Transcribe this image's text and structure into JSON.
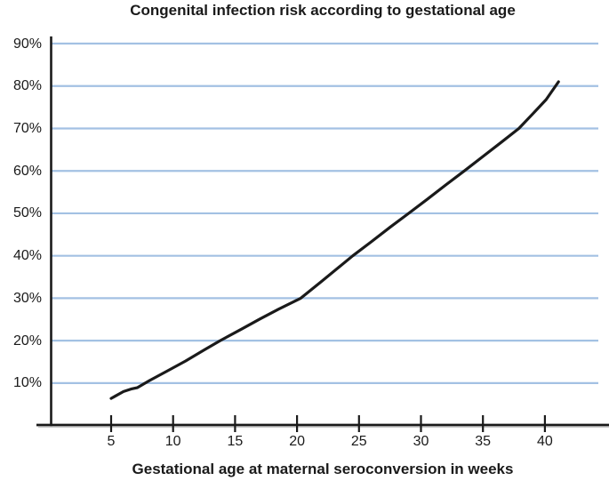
{
  "page": {
    "background": "#ffffff"
  },
  "chart_data": {
    "type": "line",
    "title": "Congenital infection risk according to gestational age",
    "xlabel": "Gestational age at maternal seroconversion in weeks",
    "ylabel": "",
    "xlim": [
      -1,
      45.2
    ],
    "ylim": [
      0,
      91.7
    ],
    "grid": true,
    "legend_position": "none",
    "colors": {
      "grid": "#a3c1e3",
      "axis": "#1a1a1a",
      "axis_shadow": "#c9c9c9",
      "line": "#1a1a1a",
      "text": "#1a1a1a"
    },
    "x_ticks": [
      {
        "value": 5,
        "label": "5"
      },
      {
        "value": 10,
        "label": "10"
      },
      {
        "value": 15,
        "label": "15"
      },
      {
        "value": 20,
        "label": "20"
      },
      {
        "value": 25,
        "label": "25"
      },
      {
        "value": 30,
        "label": "30"
      },
      {
        "value": 35,
        "label": "35"
      },
      {
        "value": 40,
        "label": "40"
      }
    ],
    "y_ticks": [
      {
        "value": 10,
        "label": "10%"
      },
      {
        "value": 20,
        "label": "20%"
      },
      {
        "value": 30,
        "label": "30%"
      },
      {
        "value": 40,
        "label": "40%"
      },
      {
        "value": 50,
        "label": "50%"
      },
      {
        "value": 60,
        "label": "60%"
      },
      {
        "value": 70,
        "label": "70%"
      },
      {
        "value": 80,
        "label": "80%"
      },
      {
        "value": 90,
        "label": "90%"
      }
    ],
    "series": [
      {
        "name": "Congenital infection risk",
        "x": [
          5,
          6,
          6.6,
          7.1,
          8.1,
          9.5,
          11,
          12.5,
          13.8,
          15.5,
          17,
          18.5,
          20.3,
          22,
          24.5,
          26,
          27.5,
          29,
          30.5,
          32,
          33.5,
          35,
          36.5,
          37.9,
          39,
          40.1,
          41.1
        ],
        "y": [
          6.4,
          8.0,
          8.6,
          8.9,
          10.6,
          12.8,
          15.2,
          17.8,
          20,
          22.7,
          25.1,
          27.4,
          30,
          34,
          40,
          43.3,
          46.7,
          50,
          53.3,
          56.7,
          60,
          63.4,
          66.8,
          70,
          73.4,
          76.8,
          81
        ]
      }
    ]
  }
}
